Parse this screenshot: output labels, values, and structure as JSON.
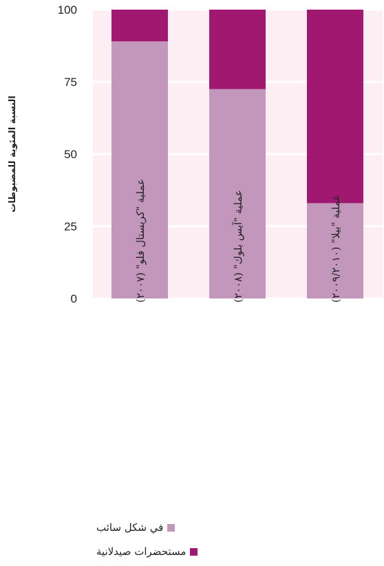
{
  "colors": {
    "plot_background": "#fdeef3",
    "gridline": "#ffffff",
    "liquid": "#c397bb",
    "pharma": "#a0186f"
  },
  "chart_data": {
    "type": "bar",
    "stacked": true,
    "ylabel": "النسبة المئوية للمضبوطات",
    "ylim": [
      0,
      100
    ],
    "yticks": [
      0,
      25,
      50,
      75,
      100
    ],
    "categories": [
      "عملية \"كريستال فلو\" (٢٠٠٧)",
      "عملية \"آيس بلوك\" (٢٠٠٨)",
      "عملية \"بيلا\" (٢٠٠٩/٢٠١٠)"
    ],
    "series": [
      {
        "name": "في شكل سائب",
        "color": "#c397bb",
        "values": [
          89,
          72.5,
          33
        ]
      },
      {
        "name": "مستحضرات صيدلانية",
        "color": "#a0186f",
        "values": [
          11,
          27.5,
          67
        ]
      }
    ],
    "grid": true,
    "legend_position": "bottom-left"
  }
}
